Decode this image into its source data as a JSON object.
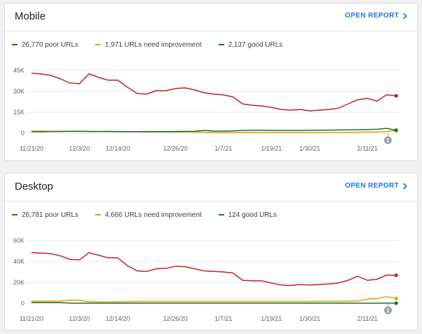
{
  "mobile": {
    "title": "Mobile",
    "open_report": "OPEN REPORT",
    "legend": [
      {
        "label": "26,770 poor URLs",
        "color": "#c5221f"
      },
      {
        "label": "1,971 URLs need improvement",
        "color": "#f29900"
      },
      {
        "label": "2,137 good URLs",
        "color": "#137333"
      }
    ],
    "marker_label": "1"
  },
  "desktop": {
    "title": "Desktop",
    "open_report": "OPEN REPORT",
    "legend": [
      {
        "label": "26,781 poor URLs",
        "color": "#c5221f"
      },
      {
        "label": "4,666 URLs need improvement",
        "color": "#f29900"
      },
      {
        "label": "124 good URLs",
        "color": "#137333"
      }
    ],
    "marker_label": "1"
  },
  "chart_data": [
    {
      "type": "line",
      "title": "Mobile",
      "x": [
        "11/21/20",
        "11/24/20",
        "11/27/20",
        "11/30/20",
        "12/2/20",
        "12/3/20",
        "12/5/20",
        "12/8/20",
        "12/11/20",
        "12/14/20",
        "12/16/20",
        "12/17/20",
        "12/19/20",
        "12/22/20",
        "12/24/20",
        "12/26/20",
        "12/28/20",
        "12/31/20",
        "1/3/21",
        "1/6/21",
        "1/7/21",
        "1/9/21",
        "1/10/21",
        "1/13/21",
        "1/16/21",
        "1/19/21",
        "1/22/21",
        "1/24/21",
        "1/27/21",
        "1/30/21",
        "2/1/21",
        "2/3/21",
        "2/5/21",
        "2/7/21",
        "2/9/21",
        "2/11/21",
        "2/13/21",
        "2/15/21",
        "2/17/21"
      ],
      "x_tick_labels": [
        "11/21/20",
        "12/3/20",
        "12/14/20",
        "12/26/20",
        "1/7/21",
        "1/19/21",
        "1/30/21",
        "2/11/21"
      ],
      "y_tick_labels": [
        "0",
        "15K",
        "30K",
        "45K"
      ],
      "ylim": [
        0,
        48000
      ],
      "series": [
        {
          "name": "26,770 poor URLs",
          "color": "#c5221f",
          "values": [
            43000,
            42500,
            41500,
            39000,
            36000,
            35500,
            42500,
            40000,
            38000,
            38000,
            33000,
            28500,
            28000,
            30500,
            30500,
            32000,
            32500,
            31000,
            29000,
            28000,
            27500,
            26000,
            21000,
            20000,
            19500,
            18500,
            17000,
            16500,
            17000,
            16000,
            16500,
            17000,
            18000,
            21000,
            24000,
            25000,
            23000,
            27500,
            26770
          ]
        },
        {
          "name": "1,971 URLs need improvement",
          "color": "#f29900",
          "values": [
            1500,
            1500,
            1400,
            1400,
            1300,
            1300,
            1300,
            1200,
            1100,
            1000,
            1000,
            1000,
            900,
            900,
            900,
            800,
            800,
            800,
            700,
            500,
            500,
            500,
            500,
            500,
            500,
            500,
            500,
            500,
            500,
            500,
            500,
            500,
            500,
            600,
            700,
            900,
            900,
            1200,
            1971
          ]
        },
        {
          "name": "2,137 good URLs",
          "color": "#137333",
          "values": [
            1000,
            1000,
            1100,
            1200,
            1300,
            1400,
            1200,
            1200,
            1300,
            1200,
            1100,
            1100,
            1200,
            1200,
            1200,
            1200,
            1300,
            1400,
            2000,
            1500,
            1500,
            1600,
            2000,
            2100,
            2100,
            2000,
            2000,
            2000,
            2000,
            2100,
            2100,
            2200,
            2300,
            2400,
            2500,
            2600,
            2800,
            3500,
            2137
          ]
        }
      ]
    },
    {
      "type": "line",
      "title": "Desktop",
      "x": [
        "11/21/20",
        "11/24/20",
        "11/27/20",
        "11/30/20",
        "12/2/20",
        "12/3/20",
        "12/5/20",
        "12/8/20",
        "12/11/20",
        "12/14/20",
        "12/16/20",
        "12/17/20",
        "12/19/20",
        "12/22/20",
        "12/24/20",
        "12/26/20",
        "12/28/20",
        "12/31/20",
        "1/3/21",
        "1/6/21",
        "1/7/21",
        "1/9/21",
        "1/10/21",
        "1/13/21",
        "1/16/21",
        "1/19/21",
        "1/22/21",
        "1/24/21",
        "1/27/21",
        "1/30/21",
        "2/1/21",
        "2/3/21",
        "2/5/21",
        "2/7/21",
        "2/9/21",
        "2/11/21",
        "2/13/21",
        "2/15/21",
        "2/17/21"
      ],
      "x_tick_labels": [
        "11/21/20",
        "12/3/20",
        "12/14/20",
        "12/26/20",
        "1/7/21",
        "1/19/21",
        "1/30/21",
        "2/11/21"
      ],
      "y_tick_labels": [
        "0",
        "20K",
        "40K",
        "60K"
      ],
      "ylim": [
        0,
        64000
      ],
      "series": [
        {
          "name": "26,781 poor URLs",
          "color": "#c5221f",
          "values": [
            48500,
            48000,
            47500,
            45500,
            42000,
            41500,
            48500,
            46000,
            43500,
            43500,
            36000,
            31000,
            30500,
            33000,
            33500,
            35500,
            35000,
            33000,
            31000,
            30500,
            30000,
            29000,
            22000,
            21500,
            21500,
            19500,
            17500,
            17000,
            18000,
            17500,
            18000,
            18500,
            19500,
            22000,
            26000,
            22000,
            23000,
            27000,
            26781
          ]
        },
        {
          "name": "4,666 URLs need improvement",
          "color": "#f29900",
          "values": [
            2000,
            2000,
            2100,
            2200,
            3000,
            3000,
            1500,
            1400,
            1400,
            1400,
            1600,
            1700,
            1700,
            1700,
            1700,
            1700,
            1700,
            1700,
            1700,
            1700,
            1700,
            1700,
            1700,
            1700,
            1700,
            1700,
            1700,
            1700,
            1700,
            1700,
            1800,
            1800,
            1900,
            2000,
            2200,
            4000,
            4500,
            6500,
            4666
          ]
        },
        {
          "name": "124 good URLs",
          "color": "#137333",
          "values": [
            900,
            900,
            900,
            900,
            200,
            200,
            200,
            200,
            200,
            200,
            200,
            200,
            200,
            200,
            200,
            200,
            200,
            200,
            200,
            200,
            200,
            200,
            200,
            200,
            200,
            200,
            200,
            200,
            200,
            200,
            200,
            200,
            200,
            200,
            200,
            200,
            200,
            200,
            124
          ]
        }
      ]
    }
  ]
}
